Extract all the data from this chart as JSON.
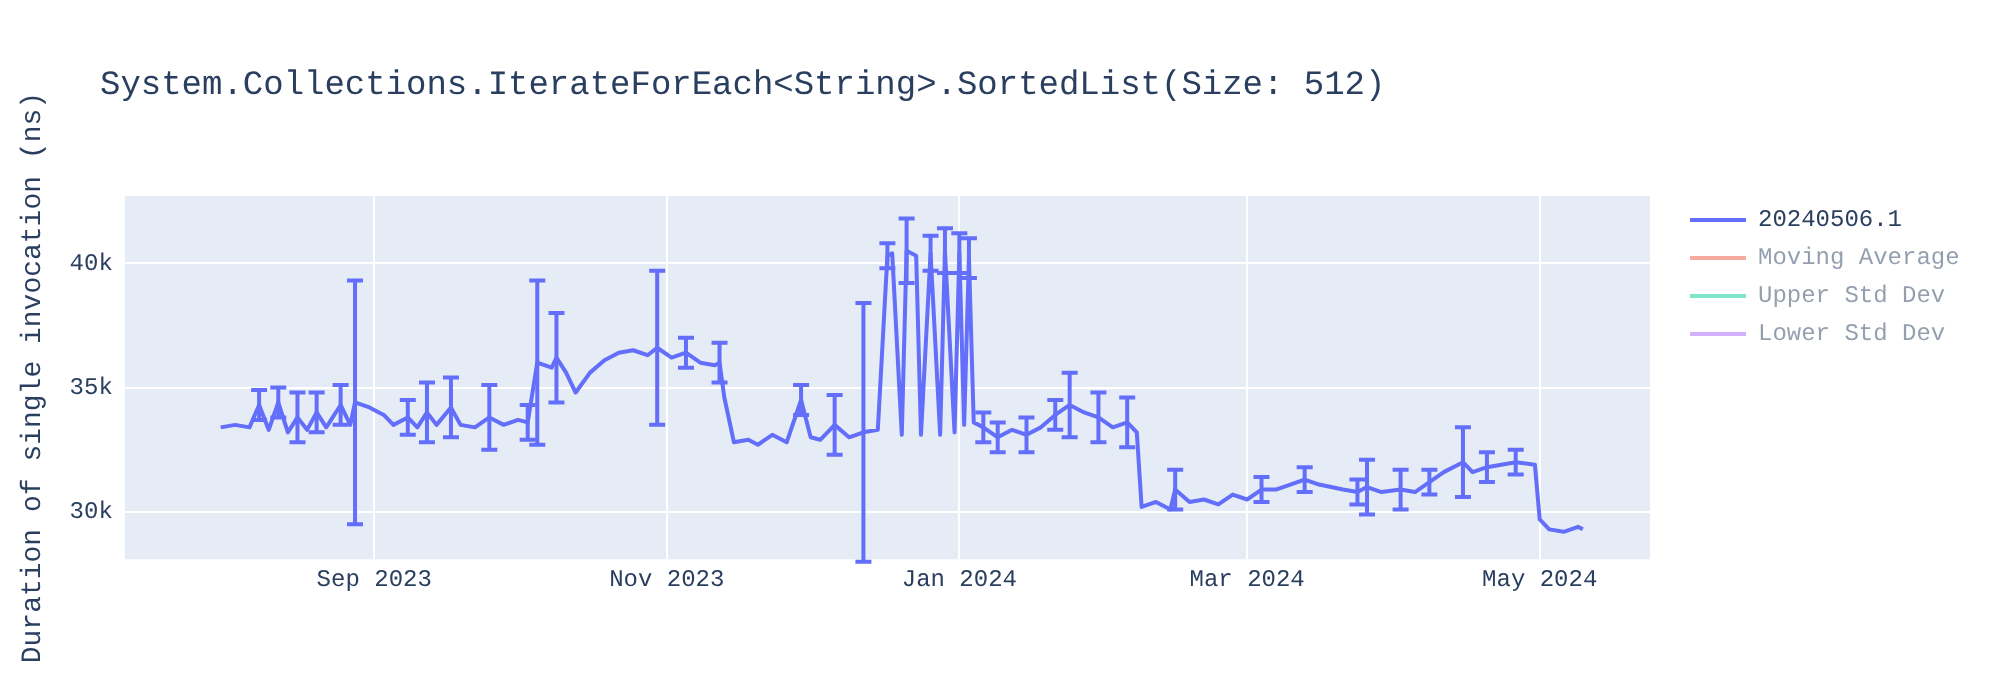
{
  "chart_data": {
    "type": "line",
    "title": "System.Collections.IterateForEach<String>.SortedList(Size: 512)",
    "ylabel": "Duration of single invocation (ns)",
    "xlim": [
      "2023-07-11",
      "2024-05-24"
    ],
    "xticks": [
      {
        "value": "2023-09-01",
        "label": "Sep 2023"
      },
      {
        "value": "2023-11-01",
        "label": "Nov 2023"
      },
      {
        "value": "2024-01-01",
        "label": "Jan 2024"
      },
      {
        "value": "2024-03-01",
        "label": "Mar 2024"
      },
      {
        "value": "2024-05-01",
        "label": "May 2024"
      }
    ],
    "ylim": [
      28100,
      42700
    ],
    "yticks": [
      {
        "value": 30000,
        "label": "30k"
      },
      {
        "value": 35000,
        "label": "35k"
      },
      {
        "value": 40000,
        "label": "40k"
      }
    ],
    "grid": true,
    "legend": "right",
    "line_style": "solid",
    "series": [
      {
        "name": "20240506.1",
        "color": "#636efa",
        "x": [
          "2023-07-31",
          "2023-08-03",
          "2023-08-06",
          "2023-08-08",
          "2023-08-10",
          "2023-08-12",
          "2023-08-14",
          "2023-08-16",
          "2023-08-18",
          "2023-08-20",
          "2023-08-22",
          "2023-08-25",
          "2023-08-27",
          "2023-08-28",
          "2023-08-31",
          "2023-09-03",
          "2023-09-05",
          "2023-09-08",
          "2023-09-10",
          "2023-09-12",
          "2023-09-14",
          "2023-09-17",
          "2023-09-19",
          "2023-09-22",
          "2023-09-25",
          "2023-09-28",
          "2023-10-01",
          "2023-10-03",
          "2023-10-05",
          "2023-10-08",
          "2023-10-09",
          "2023-10-11",
          "2023-10-13",
          "2023-10-16",
          "2023-10-19",
          "2023-10-22",
          "2023-10-25",
          "2023-10-28",
          "2023-10-30",
          "2023-11-02",
          "2023-11-05",
          "2023-11-08",
          "2023-11-11",
          "2023-11-12",
          "2023-11-13",
          "2023-11-15",
          "2023-11-18",
          "2023-11-20",
          "2023-11-23",
          "2023-11-26",
          "2023-11-29",
          "2023-12-01",
          "2023-12-03",
          "2023-12-06",
          "2023-12-09",
          "2023-12-12",
          "2023-12-15",
          "2023-12-17",
          "2023-12-18",
          "2023-12-20",
          "2023-12-21",
          "2023-12-23",
          "2023-12-24",
          "2023-12-26",
          "2023-12-28",
          "2023-12-29",
          "2023-12-31",
          "2024-01-01",
          "2024-01-02",
          "2024-01-03",
          "2024-01-04",
          "2024-01-06",
          "2024-01-09",
          "2024-01-12",
          "2024-01-15",
          "2024-01-18",
          "2024-01-21",
          "2024-01-24",
          "2024-01-27",
          "2024-01-30",
          "2024-02-02",
          "2024-02-05",
          "2024-02-07",
          "2024-02-08",
          "2024-02-11",
          "2024-02-14",
          "2024-02-15",
          "2024-02-18",
          "2024-02-21",
          "2024-02-24",
          "2024-02-27",
          "2024-03-01",
          "2024-03-04",
          "2024-03-07",
          "2024-03-10",
          "2024-03-13",
          "2024-03-16",
          "2024-03-21",
          "2024-03-24",
          "2024-03-26",
          "2024-03-29",
          "2024-04-02",
          "2024-04-05",
          "2024-04-08",
          "2024-04-11",
          "2024-04-15",
          "2024-04-17",
          "2024-04-20",
          "2024-04-23",
          "2024-04-26",
          "2024-04-30",
          "2024-05-01",
          "2024-05-03",
          "2024-05-06",
          "2024-05-09",
          "2024-05-10"
        ],
        "values": [
          33400,
          33500,
          33400,
          34300,
          33300,
          34400,
          33200,
          33800,
          33300,
          34000,
          33400,
          34300,
          33500,
          34400,
          34200,
          33900,
          33500,
          33800,
          33400,
          34000,
          33500,
          34200,
          33500,
          33400,
          33800,
          33500,
          33700,
          33600,
          36000,
          35800,
          36200,
          35600,
          34800,
          35600,
          36100,
          36400,
          36500,
          36300,
          36600,
          36200,
          36400,
          36000,
          35900,
          36000,
          34600,
          32800,
          32900,
          32700,
          33100,
          32800,
          34500,
          33000,
          32900,
          33500,
          33000,
          33200,
          33300,
          40300,
          40400,
          33100,
          40500,
          40300,
          33100,
          40400,
          33100,
          40500,
          33200,
          40400,
          33500,
          40200,
          33600,
          33400,
          33000,
          33300,
          33100,
          33400,
          33900,
          34300,
          34000,
          33800,
          33400,
          33600,
          33200,
          30200,
          30400,
          30100,
          30900,
          30400,
          30500,
          30300,
          30700,
          30500,
          30900,
          30900,
          31100,
          31300,
          31100,
          30900,
          30800,
          31000,
          30800,
          30900,
          30800,
          31200,
          31600,
          32000,
          31600,
          31800,
          31900,
          32000,
          31900,
          29700,
          29300,
          29200,
          29400,
          29300
        ],
        "errors": [
          null,
          null,
          null,
          600,
          null,
          600,
          null,
          1000,
          null,
          800,
          null,
          800,
          null,
          4900,
          null,
          null,
          null,
          700,
          null,
          1200,
          null,
          1200,
          null,
          null,
          1300,
          null,
          null,
          700,
          3300,
          null,
          1800,
          null,
          null,
          null,
          null,
          null,
          null,
          null,
          3100,
          null,
          600,
          null,
          null,
          800,
          null,
          null,
          null,
          null,
          null,
          null,
          600,
          null,
          null,
          1200,
          null,
          5200,
          null,
          500,
          null,
          null,
          1300,
          null,
          null,
          700,
          null,
          900,
          null,
          800,
          null,
          800,
          null,
          600,
          600,
          null,
          700,
          null,
          600,
          1300,
          null,
          1000,
          null,
          1000,
          null,
          null,
          null,
          null,
          800,
          null,
          null,
          null,
          null,
          null,
          500,
          null,
          null,
          500,
          null,
          null,
          500,
          1100,
          null,
          800,
          null,
          500,
          null,
          1400,
          null,
          600,
          null,
          500,
          null,
          null,
          null,
          null,
          null,
          null
        ]
      },
      {
        "name": "Moving Average",
        "color": "#ef553b"
      },
      {
        "name": "Upper Std Dev",
        "color": "#00cc96"
      },
      {
        "name": "Lower Std Dev",
        "color": "#ab63fa"
      }
    ]
  }
}
